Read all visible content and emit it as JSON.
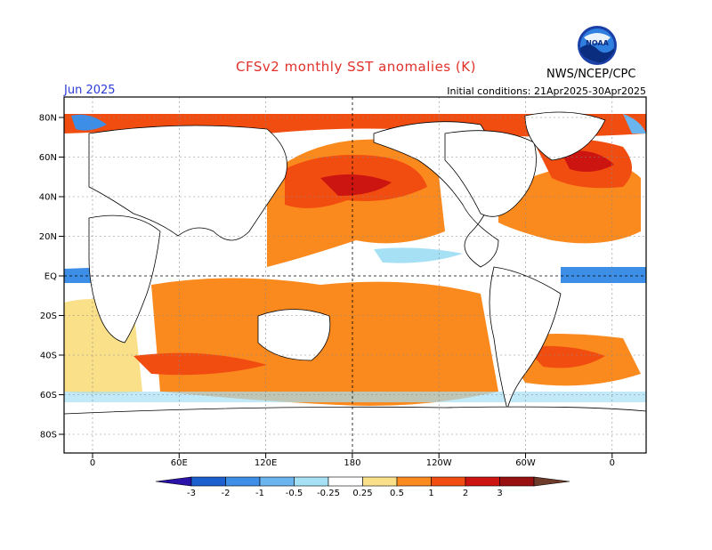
{
  "title": "CFSv2 monthly SST anomalies (K)",
  "forecast_month": "Jun 2025",
  "initial_conditions": "Initial conditions: 21Apr2025-30Apr2025",
  "agency": "NWS/NCEP/CPC",
  "logo_text": "NOAA",
  "lat_labels": [
    "80N",
    "60N",
    "40N",
    "20N",
    "EQ",
    "20S",
    "40S",
    "60S",
    "80S"
  ],
  "lon_labels": [
    "0",
    "60E",
    "120E",
    "180",
    "120W",
    "60W",
    "0"
  ],
  "colorbar": {
    "labels": [
      "-3",
      "-2",
      "-1",
      "-0.5",
      "-0.25",
      "0.25",
      "0.5",
      "1",
      "2",
      "3"
    ],
    "colors": [
      "#2a12a8",
      "#1c5fcf",
      "#3d8ee6",
      "#6ab4ef",
      "#a6e0f5",
      "#ffffff",
      "#fbe08a",
      "#fb8a1e",
      "#f24d10",
      "#cc1510",
      "#981010",
      "#6e3a2a"
    ]
  }
}
